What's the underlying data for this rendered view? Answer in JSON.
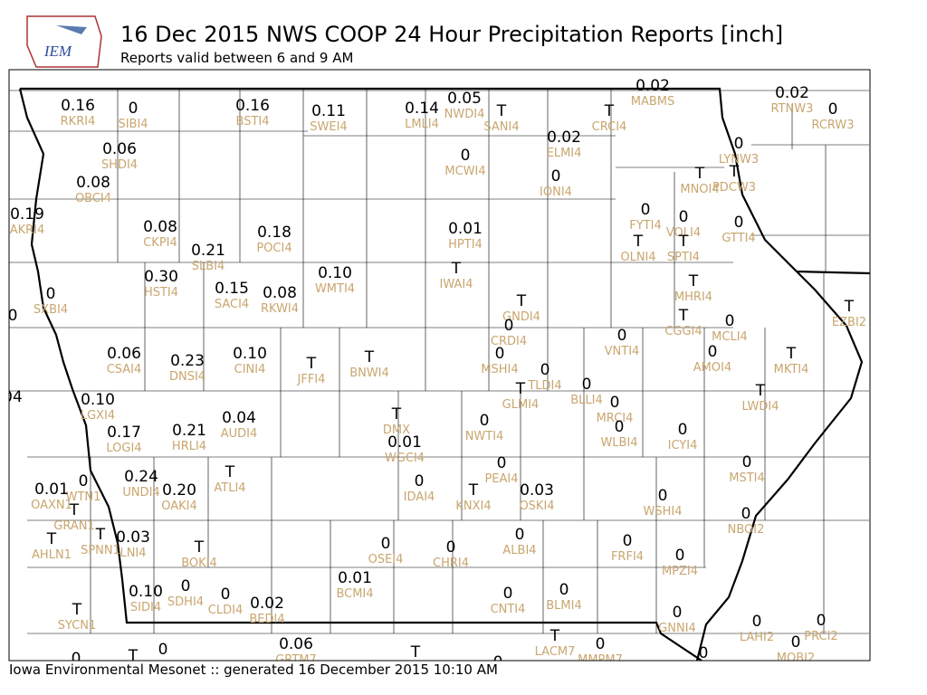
{
  "header": {
    "logo": "IEM",
    "title": "16 Dec 2015 NWS COOP 24 Hour Precipitation Reports [inch]",
    "subtitle": "Reports valid between 6 and 9 AM"
  },
  "stations": [
    {
      "value": "0.16",
      "id": "RKRI4"
    },
    {
      "value": "0",
      "id": "SIBI4"
    },
    {
      "value": "0.16",
      "id": "BSTI4"
    },
    {
      "value": "0.11",
      "id": "SWEI4"
    },
    {
      "value": "0.14",
      "id": "LMLI4"
    },
    {
      "value": "0.05",
      "id": "NWDI4"
    },
    {
      "value": "T",
      "id": "SANI4"
    },
    {
      "value": "T",
      "id": "CRCI4"
    },
    {
      "value": "0.02",
      "id": "MABMS"
    },
    {
      "value": "0.02",
      "id": "RTNW3"
    },
    {
      "value": "0",
      "id": "RCRW3"
    },
    {
      "value": "0.06",
      "id": "SHDI4"
    },
    {
      "value": "0.02",
      "id": "ELMI4"
    },
    {
      "value": "0",
      "id": "MCWI4"
    },
    {
      "value": "0",
      "id": "LYNW3"
    },
    {
      "value": "0.08",
      "id": "OBCI4"
    },
    {
      "value": "0",
      "id": "IONI4"
    },
    {
      "value": "T",
      "id": "MNOI4"
    },
    {
      "value": "T",
      "id": "PDCW3"
    },
    {
      "value": "0.19",
      "id": "AKRI4"
    },
    {
      "value": "0.08",
      "id": "CKPI4"
    },
    {
      "value": "0.18",
      "id": "POCI4"
    },
    {
      "value": "0.01",
      "id": "HPTI4"
    },
    {
      "value": "0",
      "id": "FYTI4"
    },
    {
      "value": "0",
      "id": "VOLI4"
    },
    {
      "value": "0",
      "id": "GTTI4"
    },
    {
      "value": "T",
      "id": "OLNI4"
    },
    {
      "value": "T",
      "id": "SPTI4"
    },
    {
      "value": "0.21",
      "id": "SLBI4"
    },
    {
      "value": "T",
      "id": "IWAI4"
    },
    {
      "value": "0.30",
      "id": "HSTI4"
    },
    {
      "value": "0.10",
      "id": "WMTI4"
    },
    {
      "value": "0",
      "id": "SXBI4"
    },
    {
      "value": "0.15",
      "id": "SACI4"
    },
    {
      "value": "0.08",
      "id": "RKWI4"
    },
    {
      "value": "T",
      "id": "MHRI4"
    },
    {
      "value": "T",
      "id": "GNDI4"
    },
    {
      "value": "T",
      "id": "EZBI2"
    },
    {
      "value": "0",
      "id": "CRDI4"
    },
    {
      "value": "T",
      "id": "CGGI4"
    },
    {
      "value": "0",
      "id": "MCLI4"
    },
    {
      "value": "0.06",
      "id": "CSAI4"
    },
    {
      "value": "0.23",
      "id": "DNSI4"
    },
    {
      "value": "0.10",
      "id": "CINI4"
    },
    {
      "value": "T",
      "id": "JFFI4"
    },
    {
      "value": "T",
      "id": "BNWI4"
    },
    {
      "value": "0",
      "id": "MSHI4"
    },
    {
      "value": "0",
      "id": "VNTI4"
    },
    {
      "value": "0",
      "id": "AMOI4"
    },
    {
      "value": "T",
      "id": "MKTI4"
    },
    {
      "value": "0",
      "id": "TLDI4"
    },
    {
      "value": "0",
      "id": "BLLI4"
    },
    {
      "value": "T",
      "id": "GLMI4"
    },
    {
      "value": "T",
      "id": "LWDI4"
    },
    {
      "value": "0.10",
      "id": "LGXI4"
    },
    {
      "value": "0",
      "id": "MRCI4"
    },
    {
      "value": "T",
      "id": "DMX"
    },
    {
      "value": "0.04",
      "id": "AUDI4"
    },
    {
      "value": "0.21",
      "id": "HRLI4"
    },
    {
      "value": "0.17",
      "id": "LOGI4"
    },
    {
      "value": "0",
      "id": "NWTI4"
    },
    {
      "value": "0",
      "id": "WLBI4"
    },
    {
      "value": "0",
      "id": "ICYI4"
    },
    {
      "value": "0.01",
      "id": "WGCI4"
    },
    {
      "value": "0",
      "id": "PEAI4"
    },
    {
      "value": "0",
      "id": "MSTI4"
    },
    {
      "value": "T",
      "id": "ATLI4"
    },
    {
      "value": "0.24",
      "id": "UNDI4"
    },
    {
      "value": "0",
      "id": "WTN1"
    },
    {
      "value": "0.20",
      "id": "OAKI4"
    },
    {
      "value": "0",
      "id": "IDAI4"
    },
    {
      "value": "T",
      "id": "KNXI4"
    },
    {
      "value": "0.03",
      "id": "OSKI4"
    },
    {
      "value": "0.01",
      "id": "OAXN1"
    },
    {
      "value": "T",
      "id": "GRAN1"
    },
    {
      "value": "0",
      "id": "WSHI4"
    },
    {
      "value": "0",
      "id": "NBOI2"
    },
    {
      "value": "T",
      "id": "AHLN1"
    },
    {
      "value": "T",
      "id": "SPNN1"
    },
    {
      "value": "0.03",
      "id": "LNI4"
    },
    {
      "value": "T",
      "id": "BOKI4"
    },
    {
      "value": "0",
      "id": "OSEI4"
    },
    {
      "value": "0",
      "id": "CHRI4"
    },
    {
      "value": "0",
      "id": "ALBI4"
    },
    {
      "value": "0",
      "id": "FRFI4"
    },
    {
      "value": "0",
      "id": "MPZI4"
    },
    {
      "value": "0.01",
      "id": "BCMI4"
    },
    {
      "value": "0",
      "id": "SDHI4"
    },
    {
      "value": "0.10",
      "id": "SIDI4"
    },
    {
      "value": "0",
      "id": "CLDI4"
    },
    {
      "value": "0.02",
      "id": "BEDI4"
    },
    {
      "value": "0",
      "id": "CNTI4"
    },
    {
      "value": "0",
      "id": "BLMI4"
    },
    {
      "value": "T",
      "id": "SYCN1"
    },
    {
      "value": "0",
      "id": "LAHI2"
    },
    {
      "value": "0",
      "id": "PRCI2"
    },
    {
      "value": "0",
      "id": "GNNI4"
    },
    {
      "value": "T",
      "id": "LACM7"
    },
    {
      "value": "0",
      "id": "MMPM7"
    },
    {
      "value": "0.06",
      "id": "GRTM7"
    },
    {
      "value": "0",
      "id": "MOBI2"
    },
    {
      "value": "0"
    },
    {
      "value": "T"
    },
    {
      "value": "0"
    },
    {
      "value": "T"
    },
    {
      "value": "0"
    },
    {
      "value": "0"
    },
    {
      "value": "0"
    },
    {
      "value": "04"
    }
  ],
  "footer": "Iowa Environmental Mesonet :: generated 16 December 2015 10:10 AM"
}
